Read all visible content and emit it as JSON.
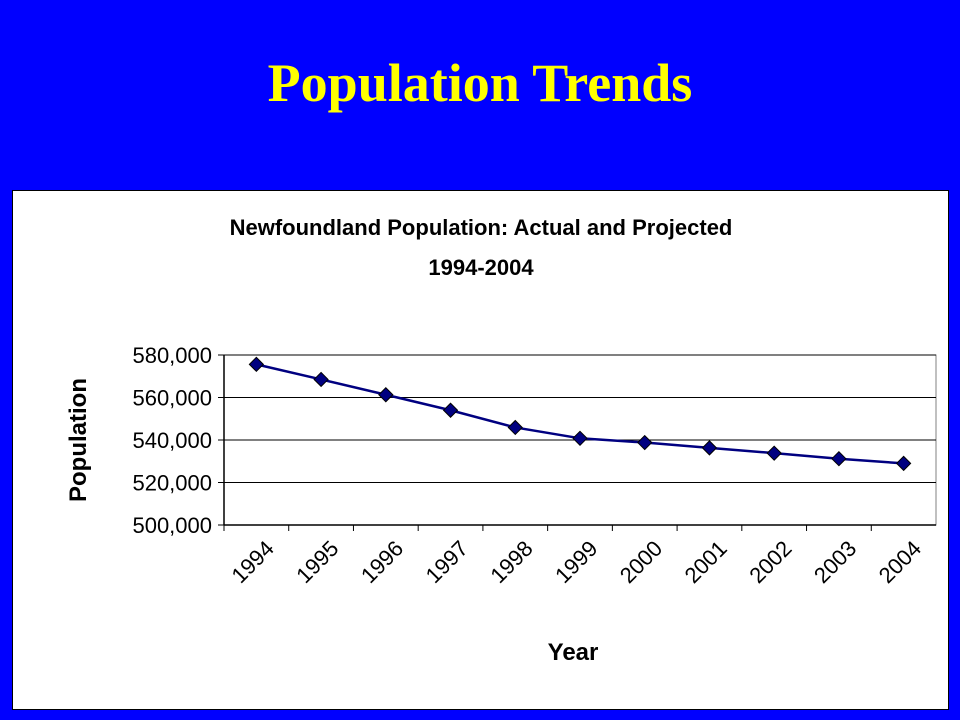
{
  "slide": {
    "title": "Population Trends",
    "background_color": "#0000ff",
    "title_color": "#ffff00"
  },
  "chart_data": {
    "type": "line",
    "title": "Newfoundland Population: Actual and Projected",
    "subtitle": "1994-2004",
    "xlabel": "Year",
    "ylabel": "Population",
    "categories": [
      "1994",
      "1995",
      "1996",
      "1997",
      "1998",
      "1999",
      "2000",
      "2001",
      "2002",
      "2003",
      "2004"
    ],
    "series": [
      {
        "values": [
          575600,
          568500,
          561300,
          554000,
          545900,
          540800,
          538800,
          536300,
          533800,
          531200,
          529000
        ],
        "color": "#000080"
      }
    ],
    "ylim": [
      500000,
      580000
    ],
    "yticks": [
      500000,
      520000,
      540000,
      560000,
      580000
    ],
    "ytick_labels": [
      "500,000",
      "520,000",
      "540,000",
      "560,000",
      "580,000"
    ],
    "grid": true,
    "legend": "none",
    "marker": "diamond"
  }
}
